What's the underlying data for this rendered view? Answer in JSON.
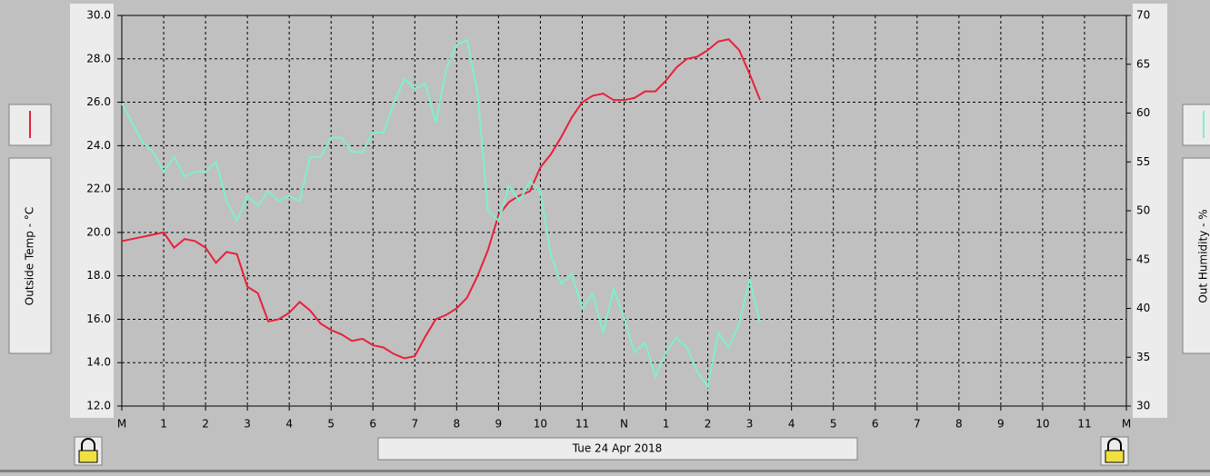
{
  "chart_data": {
    "type": "line",
    "date": "Tue 24 Apr 2018",
    "ylabel": "Outside Temp - °C",
    "y2label": "Out Humidity - %",
    "grid": true,
    "xlim": [
      0,
      24
    ],
    "xticks": [
      {
        "value": 0,
        "label": "M"
      },
      1,
      2,
      3,
      4,
      5,
      6,
      7,
      8,
      9,
      10,
      11,
      {
        "value": 12,
        "label": "N"
      },
      {
        "value": 13,
        "label": "1"
      },
      {
        "value": 14,
        "label": "2"
      },
      {
        "value": 15,
        "label": "3"
      },
      {
        "value": 16,
        "label": "4"
      },
      {
        "value": 17,
        "label": "5"
      },
      {
        "value": 18,
        "label": "6"
      },
      {
        "value": 19,
        "label": "7"
      },
      {
        "value": 20,
        "label": "8"
      },
      {
        "value": 21,
        "label": "9"
      },
      {
        "value": 22,
        "label": "10"
      },
      {
        "value": 23,
        "label": "11"
      },
      {
        "value": 24,
        "label": "M"
      }
    ],
    "ylim": [
      12,
      30
    ],
    "yticks": [
      {
        "value": 12,
        "label": "12.0"
      },
      {
        "value": 14,
        "label": "14.0"
      },
      {
        "value": 16,
        "label": "16.0"
      },
      {
        "value": 18,
        "label": "18.0"
      },
      {
        "value": 20,
        "label": "20.0"
      },
      {
        "value": 22,
        "label": "22.0"
      },
      {
        "value": 24,
        "label": "24.0"
      },
      {
        "value": 26,
        "label": "26.0"
      },
      {
        "value": 28,
        "label": "28.0"
      },
      {
        "value": 30,
        "label": "30.0"
      }
    ],
    "y2lim": [
      30,
      70
    ],
    "y2ticks": [
      30,
      35,
      40,
      45,
      50,
      55,
      60,
      65,
      70
    ],
    "x": [
      0,
      0.25,
      0.5,
      0.75,
      1,
      1.25,
      1.5,
      1.75,
      2,
      2.25,
      2.5,
      2.75,
      3,
      3.25,
      3.5,
      3.75,
      4,
      4.25,
      4.5,
      4.75,
      5,
      5.25,
      5.5,
      5.75,
      6,
      6.25,
      6.5,
      6.75,
      7,
      7.25,
      7.5,
      7.75,
      8,
      8.25,
      8.5,
      8.75,
      9,
      9.25,
      9.5,
      9.75,
      10,
      10.25,
      10.5,
      10.75,
      11,
      11.25,
      11.5,
      11.75,
      12,
      12.25,
      12.5,
      12.75,
      13,
      13.25,
      13.5,
      13.75,
      14,
      14.25,
      14.5,
      14.75,
      15,
      15.25
    ],
    "series": [
      {
        "name": "Outside Temp",
        "color": "#e8203c",
        "axis": "y",
        "values": [
          19.6,
          19.7,
          19.8,
          19.9,
          20.0,
          19.3,
          19.7,
          19.6,
          19.3,
          18.6,
          19.1,
          19.0,
          17.5,
          17.2,
          15.9,
          16.0,
          16.3,
          16.8,
          16.4,
          15.8,
          15.5,
          15.3,
          15.0,
          15.1,
          14.8,
          14.7,
          14.4,
          14.2,
          14.3,
          15.2,
          16.0,
          16.2,
          16.5,
          17.0,
          18.0,
          19.2,
          20.8,
          21.4,
          21.7,
          21.9,
          23.0,
          23.6,
          24.4,
          25.3,
          26.0,
          26.3,
          26.4,
          26.1,
          26.1,
          26.2,
          26.5,
          26.5,
          27.0,
          27.6,
          28.0,
          28.1,
          28.4,
          28.8,
          28.9,
          28.4,
          27.3,
          26.1
        ]
      },
      {
        "name": "Out Humidity",
        "color": "#80f0c8",
        "axis": "y2",
        "values": [
          61,
          59,
          57,
          56,
          54,
          55.5,
          53.5,
          54,
          54,
          55,
          51,
          49,
          51.5,
          50.5,
          52,
          51,
          51.5,
          51,
          55.5,
          55.5,
          57.5,
          57.5,
          56,
          56,
          58,
          58,
          61,
          63.5,
          62.5,
          63,
          59,
          64.5,
          67,
          67.5,
          62,
          50,
          49,
          52.5,
          51,
          53,
          52,
          45.5,
          42.5,
          43.5,
          40,
          41.5,
          37.5,
          42,
          39,
          35.5,
          36.5,
          33,
          35.5,
          37,
          36,
          33.5,
          32,
          37.5,
          36,
          38.5,
          43,
          38.5
        ]
      }
    ]
  }
}
